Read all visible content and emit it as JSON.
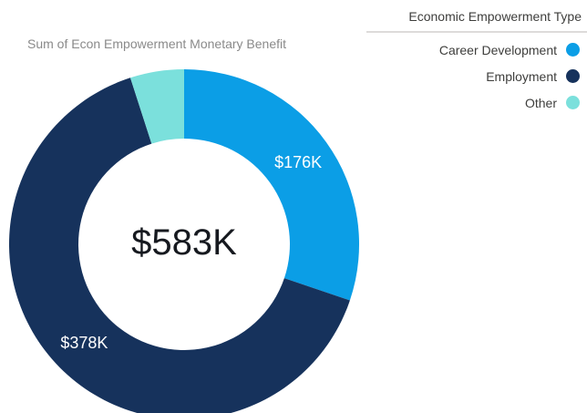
{
  "chart_data": {
    "type": "pie",
    "subtitle": "Sum of Econ Empowerment Monetary Benefit",
    "legend_title": "Economic Empowerment Type",
    "legend_position": "top-right",
    "total_label": "$583K",
    "slices": [
      {
        "name": "Career Development",
        "value": 176,
        "label": "$176K",
        "color": "#0b9ee6"
      },
      {
        "name": "Employment",
        "value": 378,
        "label": "$378K",
        "color": "#16325c"
      },
      {
        "name": "Other",
        "value": 29,
        "label": "",
        "color": "#7be0dc"
      }
    ]
  }
}
